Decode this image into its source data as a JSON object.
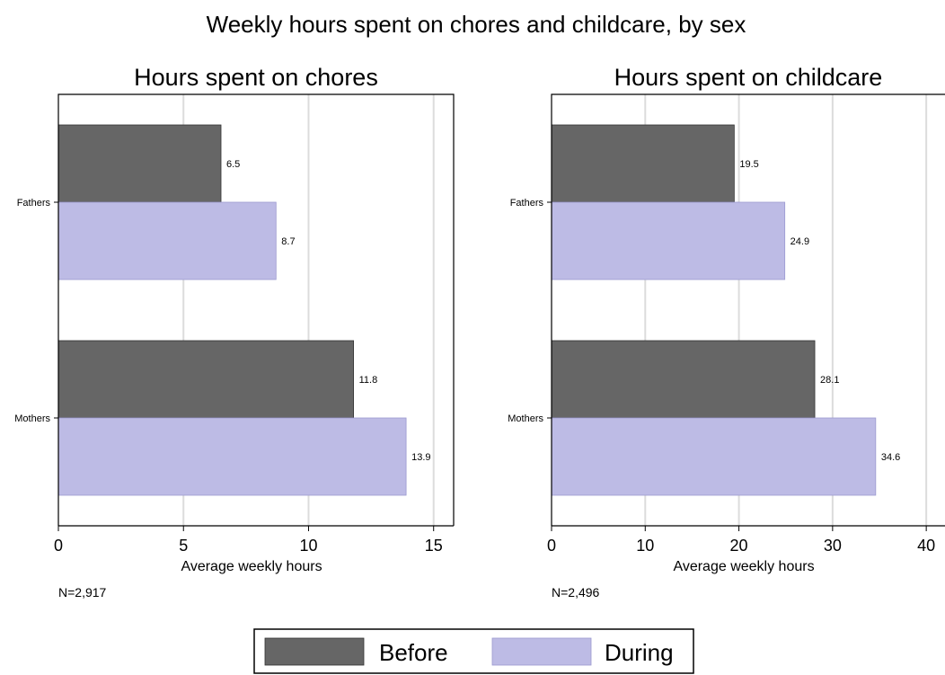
{
  "title": "Weekly hours spent on chores and childcare, by sex",
  "colors": {
    "before": "#666666",
    "during": "#bdbbe5",
    "grid": "#dcdcdc"
  },
  "legend": {
    "placement": "bottom-center",
    "items": [
      {
        "name": "Before",
        "color": "#666666"
      },
      {
        "name": "During",
        "color": "#bdbbe5"
      }
    ]
  },
  "chart_data": [
    {
      "type": "bar",
      "orientation": "horizontal",
      "title": "Hours spent on chores",
      "xlabel": "Average weekly hours",
      "note": "N=2,917",
      "categories": [
        "Fathers",
        "Mothers"
      ],
      "xlim": [
        0,
        15.8
      ],
      "ticks": [
        0,
        5,
        10,
        15
      ],
      "grid": true,
      "series": [
        {
          "name": "Before",
          "values": [
            6.5,
            11.8
          ],
          "labels": [
            "6.5",
            "11.8"
          ]
        },
        {
          "name": "During",
          "values": [
            8.7,
            13.9
          ],
          "labels": [
            "8.7",
            "13.9"
          ]
        }
      ]
    },
    {
      "type": "bar",
      "orientation": "horizontal",
      "title": "Hours spent on childcare",
      "xlabel": "Average weekly hours",
      "note": "N=2,496",
      "categories": [
        "Fathers",
        "Mothers"
      ],
      "xlim": [
        0,
        42
      ],
      "ticks": [
        0,
        10,
        20,
        30,
        40
      ],
      "grid": true,
      "series": [
        {
          "name": "Before",
          "values": [
            19.5,
            28.1
          ],
          "labels": [
            "19.5",
            "28.1"
          ]
        },
        {
          "name": "During",
          "values": [
            24.9,
            34.6
          ],
          "labels": [
            "24.9",
            "34.6"
          ]
        }
      ]
    }
  ]
}
